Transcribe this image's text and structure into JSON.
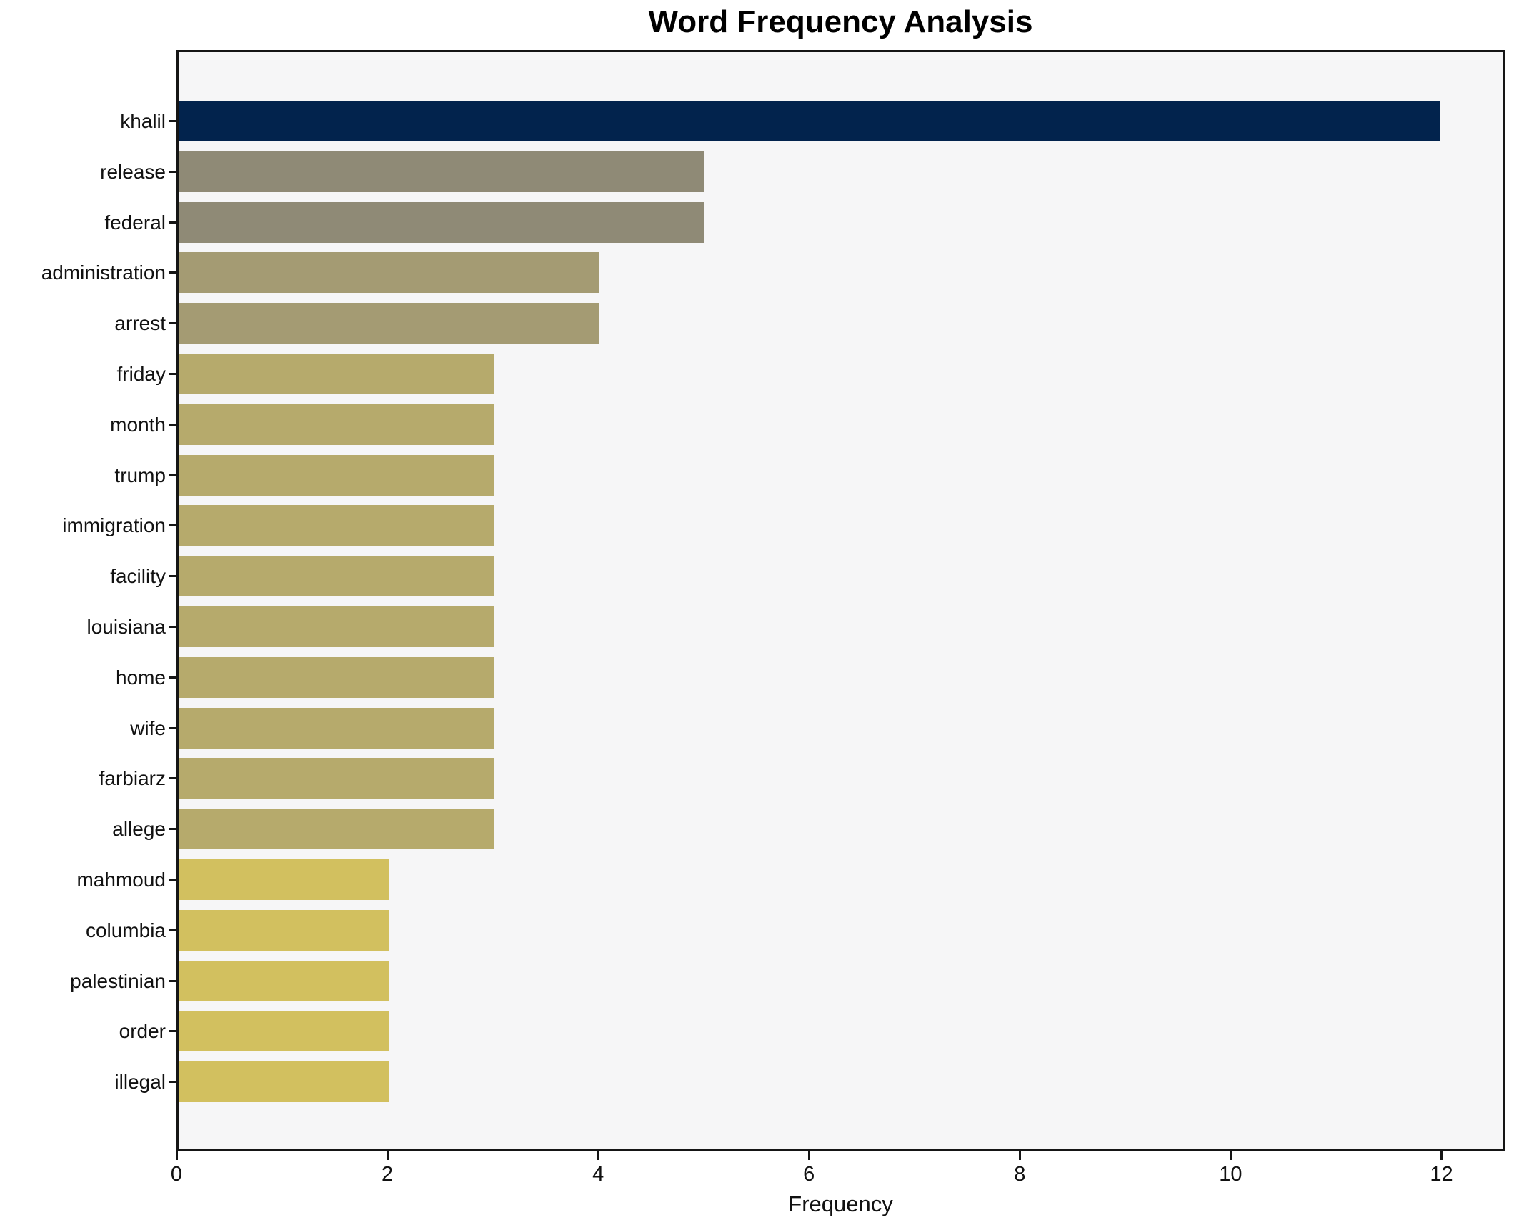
{
  "chart_data": {
    "type": "bar",
    "orientation": "horizontal",
    "title": "Word Frequency Analysis",
    "xlabel": "Frequency",
    "ylabel": "",
    "categories": [
      "khalil",
      "release",
      "federal",
      "administration",
      "arrest",
      "friday",
      "month",
      "trump",
      "immigration",
      "facility",
      "louisiana",
      "home",
      "wife",
      "farbiarz",
      "allege",
      "mahmoud",
      "columbia",
      "palestinian",
      "order",
      "illegal"
    ],
    "values": [
      12,
      5,
      5,
      4,
      4,
      3,
      3,
      3,
      3,
      3,
      3,
      3,
      3,
      3,
      3,
      2,
      2,
      2,
      2,
      2
    ],
    "bar_colors": [
      "#02234d",
      "#8f8a76",
      "#8f8a76",
      "#a49b73",
      "#a49b73",
      "#b6aa6c",
      "#b6aa6c",
      "#b6aa6c",
      "#b6aa6c",
      "#b6aa6c",
      "#b6aa6c",
      "#b6aa6c",
      "#b6aa6c",
      "#b6aa6c",
      "#b6aa6c",
      "#d2c05f",
      "#d2c05f",
      "#d2c05f",
      "#d2c05f",
      "#d2c05f"
    ],
    "xticks": [
      0,
      2,
      4,
      6,
      8,
      10,
      12
    ],
    "xlim": [
      0,
      12.6
    ],
    "grid": false,
    "legend": false,
    "plot_background": "#f6f6f7",
    "spine_color": "#151515",
    "text_color": "#111111"
  }
}
